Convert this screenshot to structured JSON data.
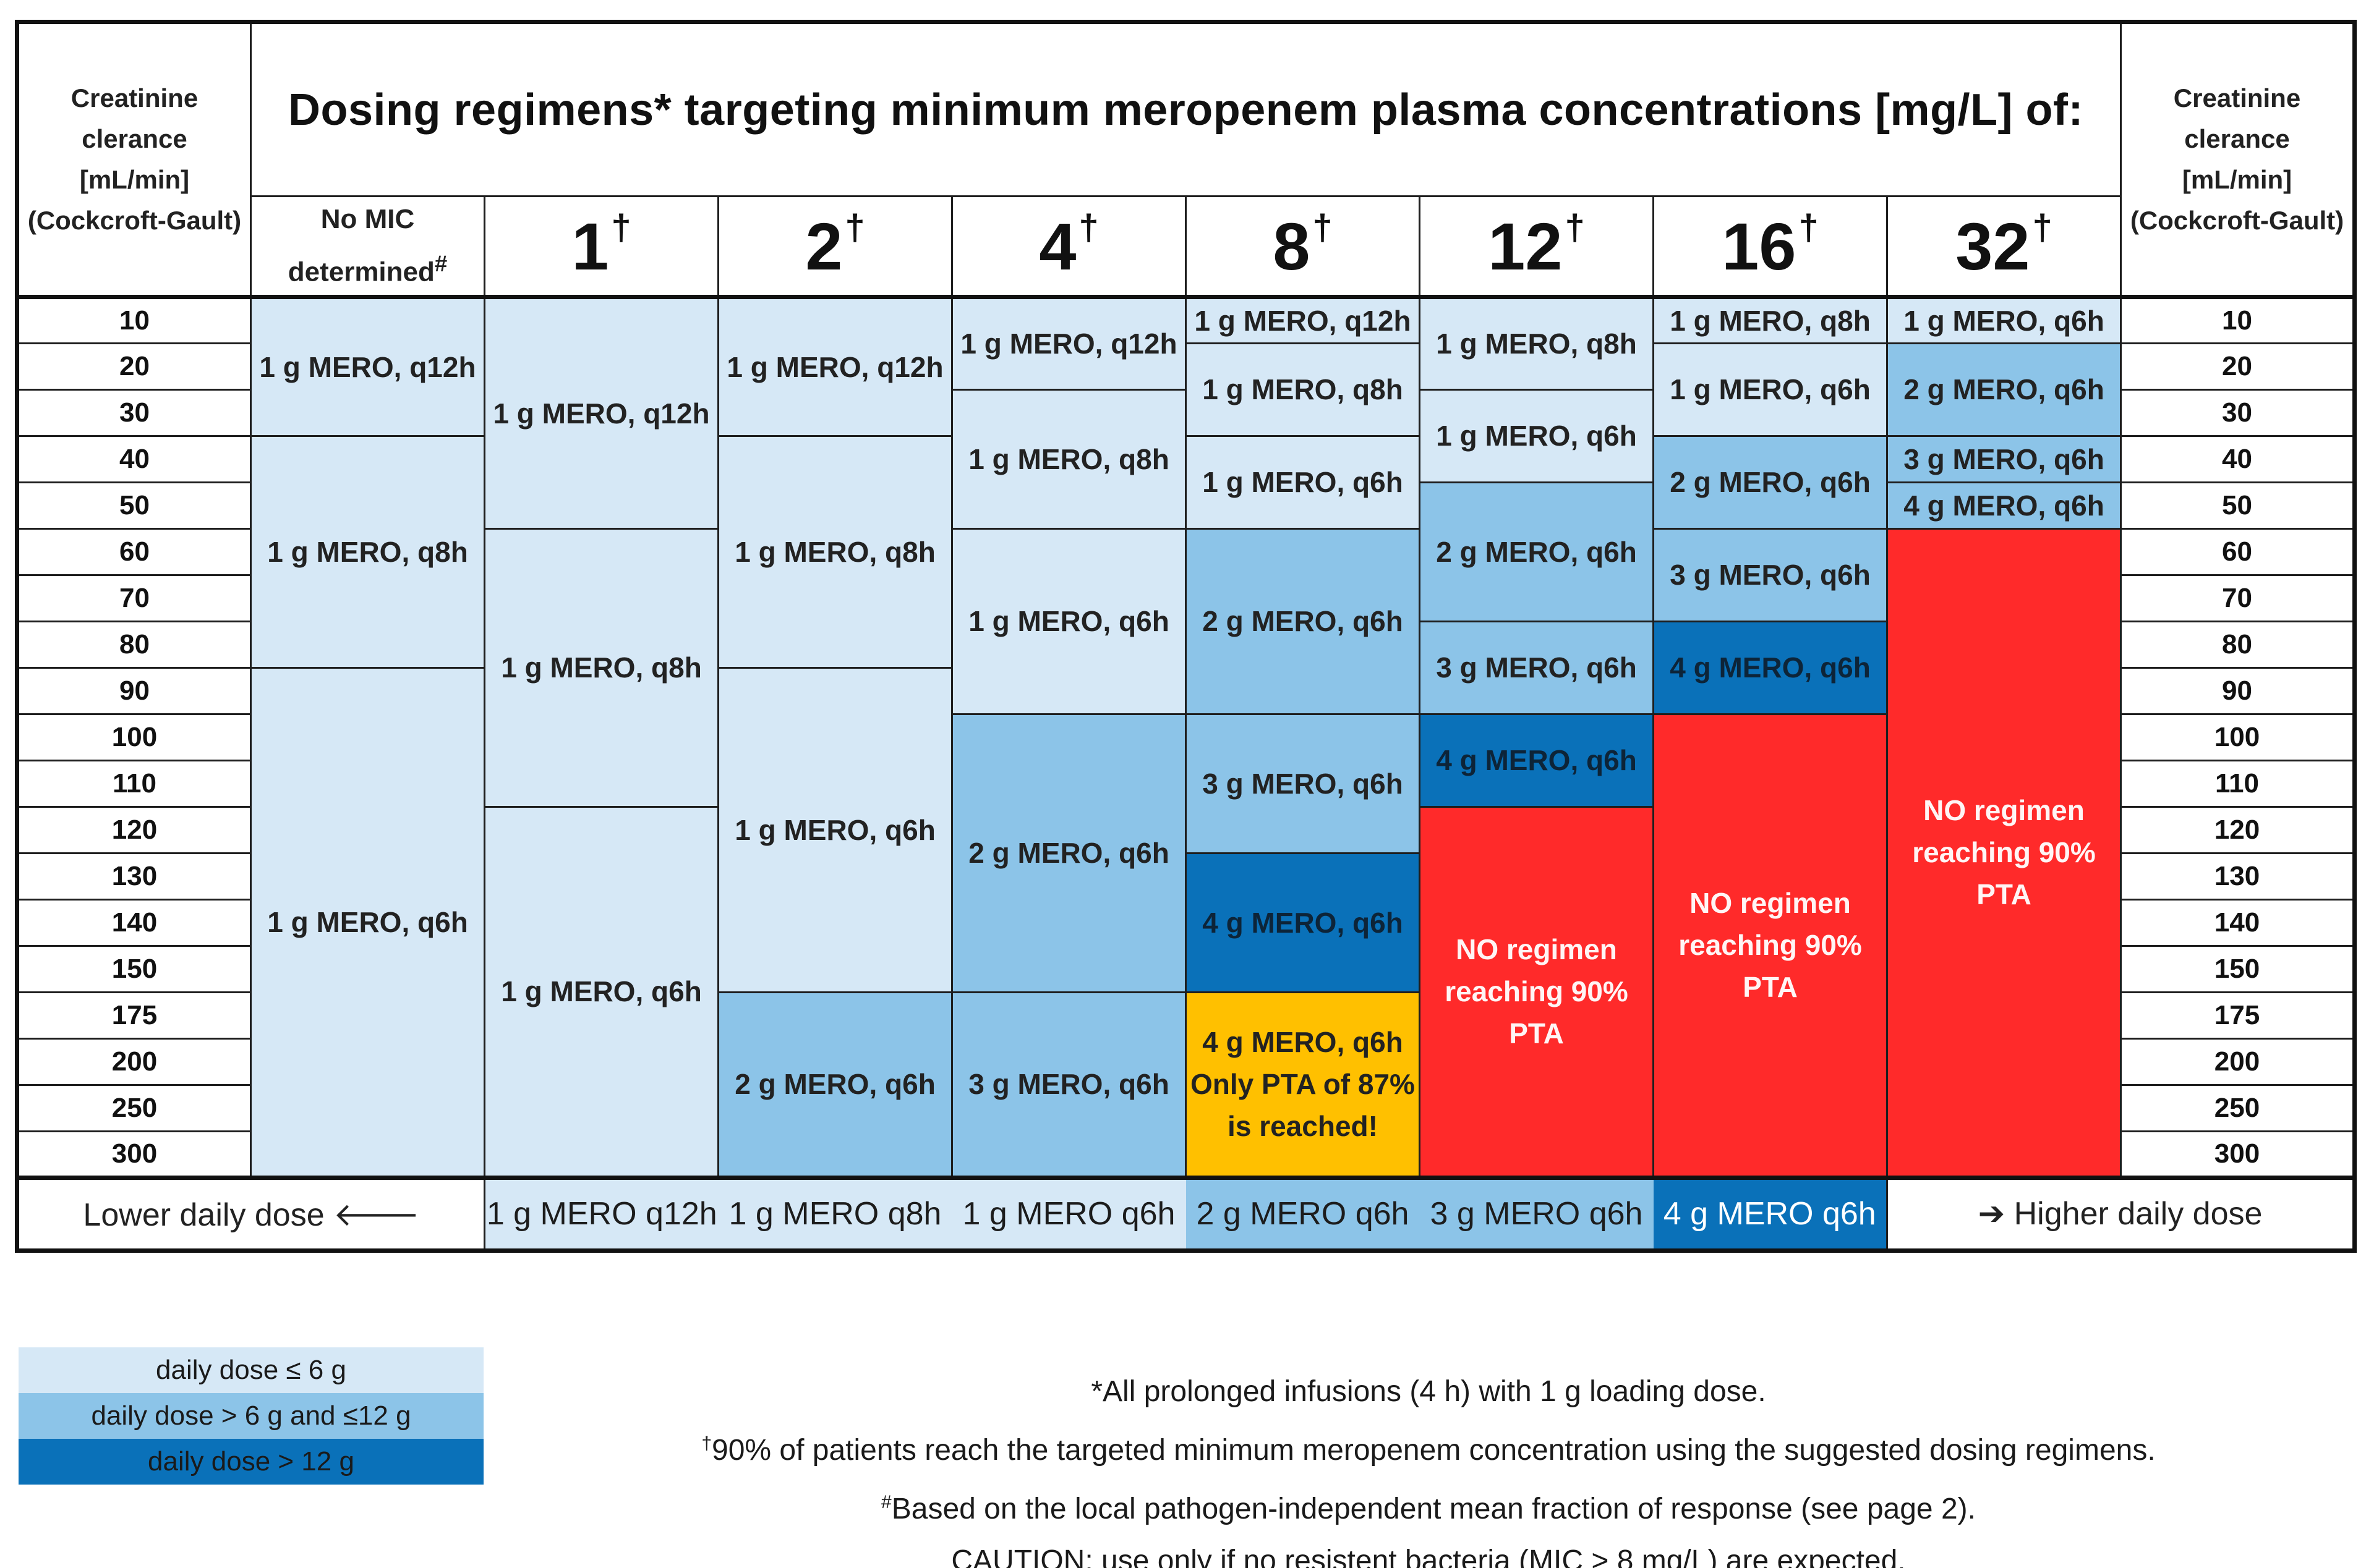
{
  "header": {
    "left_col_label": "Creatinine clerance [mL/min] (Cockcroft-Gault)",
    "left_lines": [
      "Creatinine",
      "clerance",
      "[mL/min]",
      "(Cockcroft-Gault)"
    ],
    "right_lines": [
      "Creatinine",
      "clerance",
      "[mL/min]",
      "(Cockcroft-Gault)"
    ],
    "title": "Dosing regimens* targeting minimum meropenem plasma concentrations [mg/L] of:",
    "no_mic_line1": "No MIC",
    "no_mic_line2": "determined",
    "no_mic_mark": "#",
    "mic_mark": "†",
    "mic_values": [
      "1",
      "2",
      "4",
      "8",
      "12",
      "16",
      "32"
    ]
  },
  "crcl_rows": [
    "10",
    "20",
    "30",
    "40",
    "50",
    "60",
    "70",
    "80",
    "90",
    "100",
    "110",
    "120",
    "130",
    "140",
    "150",
    "175",
    "200",
    "250",
    "300"
  ],
  "cells": {
    "nomic": [
      "1 g MERO, q12h",
      "1 g MERO, q8h",
      "1 g MERO, q6h"
    ],
    "mic1": [
      "1 g MERO, q12h",
      "1 g MERO, q8h",
      "1 g MERO, q6h"
    ],
    "mic2": [
      "1 g MERO, q12h",
      "1 g MERO, q8h",
      "1 g MERO, q6h",
      "2 g MERO, q6h"
    ],
    "mic4": [
      "1 g MERO, q12h",
      "1 g MERO, q8h",
      "1 g MERO, q6h",
      "2 g MERO, q6h",
      "3 g MERO, q6h"
    ],
    "mic8": [
      "1 g MERO, q12h",
      "1 g MERO, q8h",
      "1 g MERO, q6h",
      "2 g MERO, q6h",
      "3 g MERO, q6h",
      "4 g MERO, q6h",
      "4 g MERO, q6h Only PTA of 87% is reached!"
    ],
    "mic12": [
      "1 g MERO, q8h",
      "1 g MERO, q6h",
      "2 g MERO, q6h",
      "3 g MERO, q6h",
      "4 g MERO, q6h",
      "NO regimen reaching 90% PTA"
    ],
    "mic16": [
      "1 g MERO, q8h",
      "1 g MERO, q6h",
      "2 g MERO, q6h",
      "3 g MERO, q6h",
      "4 g MERO, q6h",
      "NO regimen reaching 90% PTA"
    ],
    "mic32": [
      "1 g MERO, q6h",
      "2 g MERO, q6h",
      "3 g MERO, q6h",
      "4 g MERO, q6h",
      "NO regimen reaching 90% PTA"
    ]
  },
  "footer": {
    "lower_label": "Lower daily dose",
    "lower_arrow": "🡐",
    "higher_label": "Higher daily dose",
    "higher_arrow": "➔",
    "scale": [
      "1 g MERO q12h",
      "1 g MERO q8h",
      "1 g MERO q6h",
      "2 g MERO q6h",
      "3 g MERO q6h",
      "4 g MERO q6h"
    ]
  },
  "legend": [
    "daily dose ≤ 6 g",
    "daily dose > 6 g and ≤12 g",
    "daily dose > 12 g"
  ],
  "notes": {
    "n1": "*All prolonged infusions (4 h) with 1 g loading dose.",
    "n2_mark": "†",
    "n2": "90% of patients reach the targeted minimum meropenem concentration using the suggested dosing regimens.",
    "n3_mark": "#",
    "n3": "Based on the local pathogen-independent mean fraction of response (see page 2).",
    "n4": "CAUTION: use only if no resistent bacteria (MIC > 8 mg/L) are expected."
  },
  "colors": {
    "dose_low": "#d6e8f6",
    "dose_mid": "#8cc4e8",
    "dose_high": "#0a71b9",
    "no_regimen": "#ff2a2a",
    "partial_pta": "#ffc000"
  }
}
